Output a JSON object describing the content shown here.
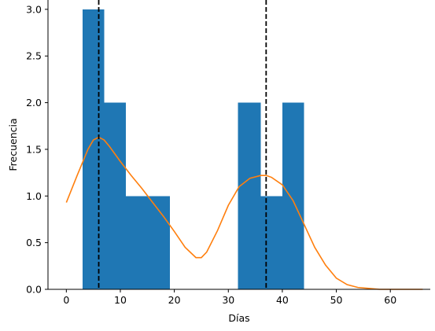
{
  "chart_data": {
    "type": "bar",
    "xlabel": "Días",
    "ylabel": "Frecuencia",
    "xlim": [
      -3.4,
      67.4
    ],
    "ylim": [
      0,
      3.1
    ],
    "xticks": [
      0,
      10,
      20,
      30,
      40,
      50,
      60
    ],
    "yticks": [
      0.0,
      0.5,
      1.0,
      1.5,
      2.0,
      2.5,
      3.0
    ],
    "ytick_labels": [
      "0.0",
      "0.5",
      "1.0",
      "1.5",
      "2.0",
      "2.5",
      "3.0"
    ],
    "histogram": {
      "color": "#1f77b4",
      "bins": [
        {
          "x0": 3,
          "x1": 7,
          "count": 3
        },
        {
          "x0": 7,
          "x1": 11,
          "count": 2
        },
        {
          "x0": 11,
          "x1": 15,
          "count": 1
        },
        {
          "x0": 15,
          "x1": 19.2,
          "count": 1
        },
        {
          "x0": 31.8,
          "x1": 36,
          "count": 2
        },
        {
          "x0": 36,
          "x1": 40,
          "count": 1
        },
        {
          "x0": 40,
          "x1": 44,
          "count": 2
        }
      ]
    },
    "density_curve": {
      "color": "#ff7f0e",
      "points": [
        [
          0,
          0.93
        ],
        [
          2,
          1.22
        ],
        [
          4,
          1.5
        ],
        [
          5,
          1.6
        ],
        [
          6,
          1.63
        ],
        [
          7,
          1.6
        ],
        [
          8,
          1.53
        ],
        [
          10,
          1.37
        ],
        [
          12,
          1.22
        ],
        [
          14,
          1.08
        ],
        [
          16,
          0.93
        ],
        [
          18,
          0.78
        ],
        [
          20,
          0.62
        ],
        [
          22,
          0.45
        ],
        [
          24,
          0.34
        ],
        [
          25,
          0.34
        ],
        [
          26,
          0.4
        ],
        [
          28,
          0.63
        ],
        [
          30,
          0.9
        ],
        [
          32,
          1.1
        ],
        [
          34,
          1.19
        ],
        [
          36,
          1.22
        ],
        [
          37,
          1.22
        ],
        [
          38,
          1.2
        ],
        [
          40,
          1.12
        ],
        [
          42,
          0.95
        ],
        [
          44,
          0.7
        ],
        [
          46,
          0.45
        ],
        [
          48,
          0.26
        ],
        [
          50,
          0.12
        ],
        [
          52,
          0.05
        ],
        [
          54,
          0.02
        ],
        [
          56,
          0.01
        ],
        [
          58,
          0.0
        ],
        [
          60,
          0.0
        ],
        [
          63,
          0.0
        ],
        [
          66,
          0.0
        ]
      ]
    },
    "vertical_lines": [
      {
        "x": 6,
        "style": "dashed",
        "color": "#000000"
      },
      {
        "x": 37,
        "style": "dashed",
        "color": "#000000"
      }
    ],
    "spines": {
      "top": false,
      "right": false,
      "left": true,
      "bottom": true
    },
    "grid": false
  }
}
